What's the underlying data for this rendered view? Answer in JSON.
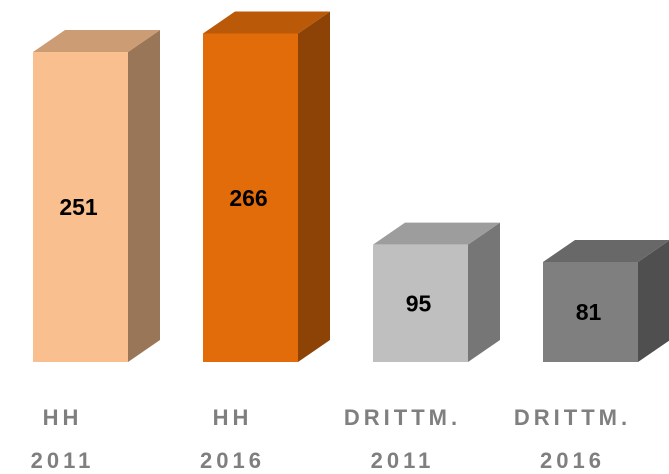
{
  "chart_data": {
    "type": "bar3d",
    "categories": [
      "HH 2011",
      "HH 2016",
      "DRITTM. 2011",
      "DRITTM. 2016"
    ],
    "values": [
      251,
      266,
      95,
      81
    ],
    "colors": [
      "#f9bf8f",
      "#e36c0a",
      "#bfbfbf",
      "#7f7f7f"
    ]
  }
}
